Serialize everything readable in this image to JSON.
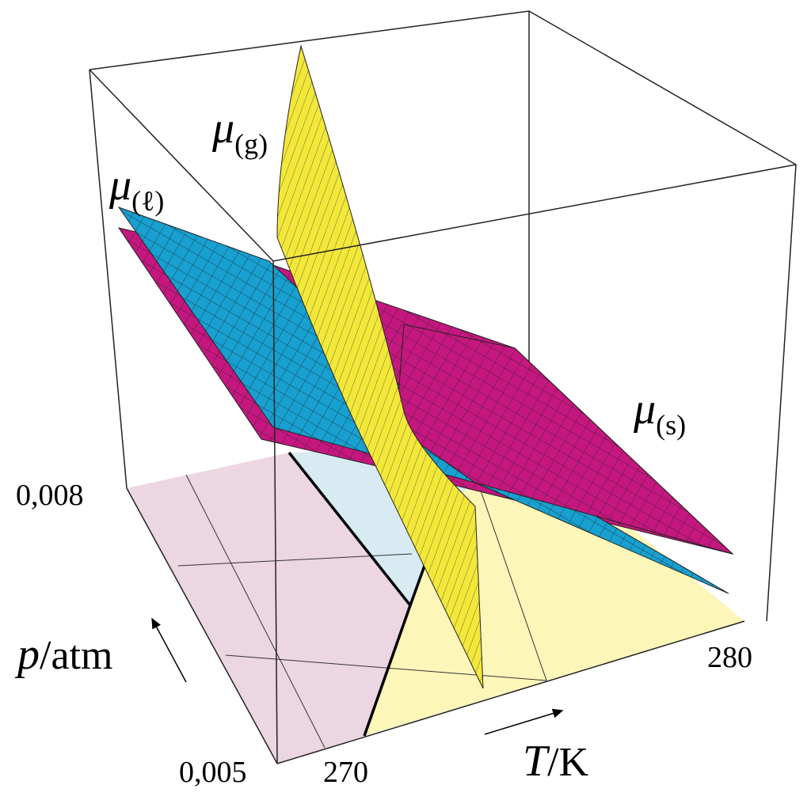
{
  "surfaces": [
    {
      "symbol": "μ",
      "subscript": "(g)"
    },
    {
      "symbol": "μ",
      "subscript": "(ℓ)"
    },
    {
      "symbol": "μ",
      "subscript": "(s)"
    }
  ],
  "axes": {
    "pressure": {
      "symbol": "p",
      "unit": "/atm",
      "ticks": [
        "0,008",
        "0,005"
      ]
    },
    "temperature": {
      "symbol": "T",
      "unit": "/K",
      "ticks": [
        "270",
        "280"
      ]
    }
  }
}
